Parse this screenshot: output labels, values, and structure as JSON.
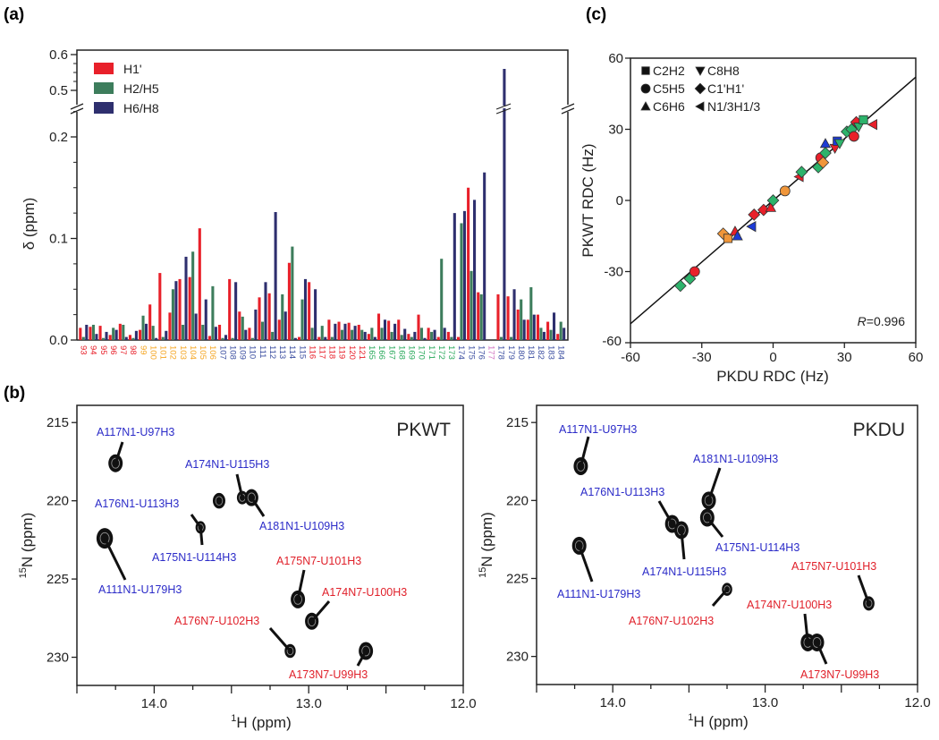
{
  "panels": {
    "a": "(a)",
    "b": "(b)",
    "c": "(c)"
  },
  "chart_data": [
    {
      "type": "bar",
      "title": "(a)",
      "xlabel": "",
      "ylabel": "δ (ppm)",
      "ylim": [
        0,
        0.6
      ],
      "axis_break": [
        0.23,
        0.47
      ],
      "yticks": [
        "0.0",
        "0.1",
        "0.2",
        "0.5",
        "0.6"
      ],
      "legend_position": "top-left",
      "series_colors": [
        "#e8202a",
        "#3d7d5c",
        "#2e2f6e"
      ],
      "series": [
        {
          "name": "H1'"
        },
        {
          "name": "H2/H5"
        },
        {
          "name": "H6/H8"
        }
      ],
      "categories": [
        "93",
        "94",
        "95",
        "96",
        "97",
        "98",
        "99",
        "100",
        "101",
        "102",
        "103",
        "104",
        "105",
        "106",
        "107",
        "108",
        "109",
        "110",
        "111",
        "112",
        "113",
        "114",
        "115",
        "116",
        "117",
        "118",
        "119",
        "120",
        "121",
        "165",
        "166",
        "167",
        "168",
        "169",
        "170",
        "171",
        "172",
        "173",
        "174",
        "175",
        "176",
        "177",
        "178",
        "179",
        "180",
        "181",
        "182",
        "183",
        "184"
      ],
      "category_colors": [
        "#e8202a",
        "#e8202a",
        "#e8202a",
        "#e8202a",
        "#e8202a",
        "#e8202a",
        "#f5a623",
        "#f5a623",
        "#f5a623",
        "#f5a623",
        "#f5a623",
        "#f5a623",
        "#f5a623",
        "#f5a623",
        "#3a4da0",
        "#3a4da0",
        "#3a4da0",
        "#3a4da0",
        "#3a4da0",
        "#3a4da0",
        "#3a4da0",
        "#3a4da0",
        "#3a4da0",
        "#e8202a",
        "#e8202a",
        "#e8202a",
        "#e8202a",
        "#e8202a",
        "#e8202a",
        "#27a85a",
        "#27a85a",
        "#27a85a",
        "#27a85a",
        "#27a85a",
        "#27a85a",
        "#27a85a",
        "#27a85a",
        "#27a85a",
        "#3a4da0",
        "#3a4da0",
        "#3a4da0",
        "#d070c0",
        "#3a4da0",
        "#3a4da0",
        "#3a4da0",
        "#3a4da0",
        "#3a4da0",
        "#3a4da0",
        "#3a4da0"
      ],
      "values": [
        [
          0.012,
          0.003,
          0.015
        ],
        [
          0.013,
          0.015,
          0.006
        ],
        [
          0.014,
          0.002,
          0.008
        ],
        [
          0.005,
          0.012,
          0.01
        ],
        [
          0.016,
          0.015,
          0.003
        ],
        [
          0.005,
          0.002,
          0.009
        ],
        [
          0.01,
          0.024,
          0.016
        ],
        [
          0.035,
          0.014,
          0.002
        ],
        [
          0.066,
          0.003,
          0.009
        ],
        [
          0.027,
          0.05,
          0.058
        ],
        [
          0.06,
          0.015,
          0.082
        ],
        [
          0.062,
          0.087,
          0.026
        ],
        [
          0.11,
          0.015,
          0.04
        ],
        [
          0.004,
          0.053,
          0.013
        ],
        [
          0.015,
          0.002,
          0.005
        ],
        [
          0.06,
          0.002,
          0.057
        ],
        [
          0.028,
          0.023,
          0.01
        ],
        [
          0.012,
          0.002,
          0.03
        ],
        [
          0.042,
          0.018,
          0.057
        ],
        [
          0.046,
          0.008,
          0.126
        ],
        [
          0.02,
          0.045,
          0.028
        ],
        [
          0.076,
          0.092,
          0.002
        ],
        [
          0.003,
          0.04,
          0.06
        ],
        [
          0.057,
          0.012,
          0.05
        ],
        [
          0.003,
          0.014,
          0.003
        ],
        [
          0.02,
          0.003,
          0.016
        ],
        [
          0.018,
          0.01,
          0.016
        ],
        [
          0.017,
          0.01,
          0.014
        ],
        [
          0.015,
          0.01,
          0.008
        ],
        [
          0.006,
          0.012,
          0.003
        ],
        [
          0.026,
          0.012,
          0.02
        ],
        [
          0.019,
          0.008,
          0.016
        ],
        [
          0.02,
          0.005,
          0.011
        ],
        [
          0.006,
          0.003,
          0.008
        ],
        [
          0.025,
          0.012,
          0.002
        ],
        [
          0.012,
          0.008,
          0.01
        ],
        [
          0.003,
          0.08,
          0.012
        ],
        [
          0.008,
          0.003,
          0.125
        ],
        [
          0.003,
          0.115,
          0.127
        ],
        [
          0.15,
          0.068,
          0.138
        ],
        [
          0.047,
          0.045,
          0.165
        ],
        [
          0,
          0,
          0
        ],
        [
          0.045,
          0.003,
          0.56
        ],
        [
          0.043,
          0.003,
          0.05
        ],
        [
          0.03,
          0.04,
          0.02
        ],
        [
          0.02,
          0.052,
          0.025
        ],
        [
          0.025,
          0.012,
          0.008
        ],
        [
          0.018,
          0.01,
          0.027
        ],
        [
          0.006,
          0.018,
          0.012
        ]
      ]
    },
    {
      "type": "scatter",
      "title": "(c)",
      "xlabel": "PKDU RDC (Hz)",
      "ylabel": "PKWT RDC (Hz)",
      "xlim": [
        -60,
        60
      ],
      "ylim": [
        -60,
        60
      ],
      "xticks": [
        "-60",
        "-30",
        "0",
        "30",
        "60"
      ],
      "yticks": [
        "-60",
        "-30",
        "0",
        "30",
        "60"
      ],
      "annotation": {
        "prefix": "R",
        "text": "=0.996"
      },
      "fit_line": {
        "x": [
          -60,
          60
        ],
        "y": [
          -52,
          52
        ]
      },
      "legend_position": "top-left",
      "legend": [
        {
          "shape": "square",
          "label": "C2H2"
        },
        {
          "shape": "triangle-down",
          "label": "C8H8"
        },
        {
          "shape": "circle",
          "label": "C5H5"
        },
        {
          "shape": "diamond",
          "label": "C1'H1'"
        },
        {
          "shape": "triangle-up",
          "label": "C6H6"
        },
        {
          "shape": "triangle-left",
          "label": "N1/3H1/3"
        }
      ],
      "points": [
        {
          "x": -39,
          "y": -36,
          "shape": "diamond",
          "color": "#2db36b"
        },
        {
          "x": -35,
          "y": -33,
          "shape": "diamond",
          "color": "#2db36b"
        },
        {
          "x": -33,
          "y": -30,
          "shape": "circle",
          "color": "#e8202a"
        },
        {
          "x": -21,
          "y": -14,
          "shape": "diamond",
          "color": "#f0963a"
        },
        {
          "x": -19,
          "y": -16,
          "shape": "square",
          "color": "#f0963a"
        },
        {
          "x": -16,
          "y": -13,
          "shape": "triangle-up",
          "color": "#e8202a"
        },
        {
          "x": -15,
          "y": -15,
          "shape": "triangle-up",
          "color": "#1c3bd6"
        },
        {
          "x": -9,
          "y": -11,
          "shape": "triangle-left",
          "color": "#1c3bd6"
        },
        {
          "x": -8,
          "y": -6,
          "shape": "diamond",
          "color": "#e8202a"
        },
        {
          "x": -4,
          "y": -4,
          "shape": "diamond",
          "color": "#e8202a"
        },
        {
          "x": -1,
          "y": -3,
          "shape": "triangle-up",
          "color": "#e8202a"
        },
        {
          "x": 0,
          "y": 0,
          "shape": "diamond",
          "color": "#2db36b"
        },
        {
          "x": 5,
          "y": 4,
          "shape": "circle",
          "color": "#f0963a"
        },
        {
          "x": 11,
          "y": 10,
          "shape": "triangle-left",
          "color": "#e8202a"
        },
        {
          "x": 12,
          "y": 12,
          "shape": "diamond",
          "color": "#2db36b"
        },
        {
          "x": 19,
          "y": 14,
          "shape": "diamond",
          "color": "#2db36b"
        },
        {
          "x": 20,
          "y": 18,
          "shape": "circle",
          "color": "#e8202a"
        },
        {
          "x": 21,
          "y": 16,
          "shape": "diamond",
          "color": "#f0963a"
        },
        {
          "x": 22,
          "y": 20,
          "shape": "diamond",
          "color": "#2db36b"
        },
        {
          "x": 22,
          "y": 24,
          "shape": "triangle-up",
          "color": "#1c3bd6"
        },
        {
          "x": 26,
          "y": 22,
          "shape": "triangle-down",
          "color": "#e8202a"
        },
        {
          "x": 27,
          "y": 25,
          "shape": "square",
          "color": "#1c3bd6"
        },
        {
          "x": 28,
          "y": 24,
          "shape": "triangle-down",
          "color": "#2db36b"
        },
        {
          "x": 31,
          "y": 29,
          "shape": "diamond",
          "color": "#2db36b"
        },
        {
          "x": 33,
          "y": 30,
          "shape": "diamond",
          "color": "#2db36b"
        },
        {
          "x": 34,
          "y": 27,
          "shape": "circle",
          "color": "#e8202a"
        },
        {
          "x": 35,
          "y": 33,
          "shape": "diamond",
          "color": "#e8202a"
        },
        {
          "x": 36,
          "y": 31,
          "shape": "triangle-down",
          "color": "#2db36b"
        },
        {
          "x": 38,
          "y": 34,
          "shape": "square",
          "color": "#2db36b"
        },
        {
          "x": 42,
          "y": 32,
          "shape": "triangle-left",
          "color": "#e8202a"
        }
      ]
    },
    {
      "type": "scatter",
      "title": "PKWT",
      "xlabel_sup": "1",
      "xlabel": "H (ppm)",
      "ylabel_sup": "15",
      "ylabel": "N (ppm)",
      "xlim": [
        14.5,
        12.0
      ],
      "ylim": [
        231.8,
        213.9
      ],
      "xticks": [
        "14.0",
        "13.0",
        "12.0"
      ],
      "yticks": [
        "215",
        "220",
        "225",
        "230"
      ],
      "peaks": [
        {
          "label": "A117N1-U97H3",
          "h": 14.25,
          "n": 217.6,
          "type": "N1",
          "size": 1.0
        },
        {
          "label": "",
          "h": 13.58,
          "n": 220.0,
          "type": "N1",
          "size": 0.75
        },
        {
          "label": "A174N1-U115H3",
          "h": 13.43,
          "n": 219.8,
          "type": "N1",
          "size": 0.5
        },
        {
          "label": "A181N1-U109H3",
          "h": 13.37,
          "n": 219.8,
          "type": "N1",
          "size": 0.9
        },
        {
          "label": "A176N1-U113H3",
          "h": 13.7,
          "n": 221.7,
          "type": "N1",
          "size": 0.4
        },
        {
          "label": "A175N1-U114H3",
          "h": 13.7,
          "n": 221.7,
          "type": "N1",
          "size": 0.0
        },
        {
          "label": "A111N1-U179H3",
          "h": 14.32,
          "n": 222.4,
          "type": "N1",
          "size": 1.3
        },
        {
          "label": "A175N7-U101H3",
          "h": 13.07,
          "n": 226.3,
          "type": "N7",
          "size": 1.0
        },
        {
          "label": "A174N7-U100H3",
          "h": 12.98,
          "n": 227.7,
          "type": "N7",
          "size": 0.9
        },
        {
          "label": "A176N7-U102H3",
          "h": 13.12,
          "n": 229.6,
          "type": "N7",
          "size": 0.55
        },
        {
          "label": "A173N7-U99H3",
          "h": 12.63,
          "n": 229.6,
          "type": "N7",
          "size": 1.0
        }
      ]
    },
    {
      "type": "scatter",
      "title": "PKDU",
      "xlabel_sup": "1",
      "xlabel": "H (ppm)",
      "ylabel_sup": "15",
      "ylabel": "N (ppm)",
      "xlim": [
        14.5,
        12.0
      ],
      "ylim": [
        231.8,
        213.9
      ],
      "xticks": [
        "14.0",
        "13.0",
        "12.0"
      ],
      "yticks": [
        "215",
        "220",
        "225",
        "230"
      ],
      "peaks": [
        {
          "label": "A117N1-U97H3",
          "h": 14.21,
          "n": 217.8,
          "type": "N1",
          "size": 1.0
        },
        {
          "label": "A181N1-U109H3",
          "h": 13.37,
          "n": 220.0,
          "type": "N1",
          "size": 1.0
        },
        {
          "label": "A176N1-U113H3",
          "h": 13.61,
          "n": 221.5,
          "type": "N1",
          "size": 1.0
        },
        {
          "label": "A175N1-U114H3",
          "h": 13.38,
          "n": 221.1,
          "type": "N1",
          "size": 1.0
        },
        {
          "label": "A174N1-U115H3",
          "h": 13.55,
          "n": 221.9,
          "type": "N1",
          "size": 1.0
        },
        {
          "label": "A111N1-U179H3",
          "h": 14.22,
          "n": 222.9,
          "type": "N1",
          "size": 1.0
        },
        {
          "label": "A175N7-U101H3",
          "h": 12.32,
          "n": 226.6,
          "type": "N7",
          "size": 0.6
        },
        {
          "label": "A176N7-U102H3",
          "h": 13.25,
          "n": 225.7,
          "type": "N7",
          "size": 0.45
        },
        {
          "label": "A174N7-U100H3",
          "h": 12.72,
          "n": 229.1,
          "type": "N7",
          "size": 1.0
        },
        {
          "label": "A173N7-U99H3",
          "h": 12.66,
          "n": 229.1,
          "type": "N7",
          "size": 1.0
        }
      ]
    }
  ],
  "colors": {
    "n1_label": "#2b2bc8",
    "n7_label": "#e0202a",
    "axis": "#222222"
  }
}
